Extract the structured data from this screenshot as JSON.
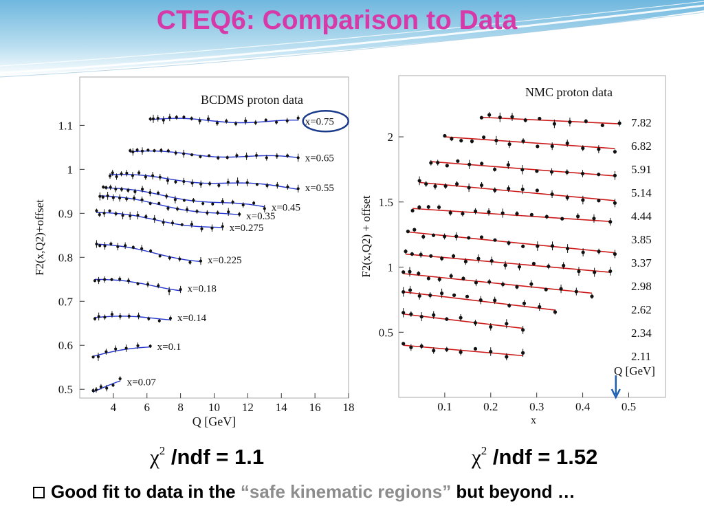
{
  "slide": {
    "title": "CTEQ6: Comparison to Data",
    "chi_left": {
      "symbol": "χ",
      "sup": "2",
      "text": " /ndf = 1.1"
    },
    "chi_right": {
      "symbol": "χ",
      "sup": "2",
      "text": " /ndf = 1.52"
    },
    "bullet": {
      "before": "Good fit to data in the ",
      "highlight": "“safe kinematic regions”",
      "after": " but beyond …"
    },
    "colors": {
      "title": "#d63aa8",
      "highlight": "#8c8c8c",
      "fit_left": "#2233cc",
      "fit_right": "#cc1a1a",
      "marker_circle": "#1a3a8a",
      "arrow": "#1a5fb4"
    }
  },
  "chart_data": [
    {
      "type": "scatter",
      "title": "BCDMS proton data",
      "xlabel": "Q [GeV]",
      "ylabel": "F2(x,Q2)+offset",
      "xlim": [
        2,
        18
      ],
      "ylim": [
        0.48,
        1.21
      ],
      "xticks": [
        4,
        6,
        8,
        10,
        12,
        14,
        16,
        18
      ],
      "yticks": [
        0.5,
        0.6,
        0.7,
        0.8,
        0.9,
        1.0,
        1.1
      ],
      "ytick_labels": [
        "0.5",
        "0.6",
        "0.7",
        "0.8",
        "0.9",
        "1",
        "1.1"
      ],
      "grid": false,
      "highlighted_series": "x=0.75",
      "series": [
        {
          "name": "x=0.75",
          "x_range": [
            6.2,
            15.0
          ],
          "fit": [
            1.113,
            1.108
          ]
        },
        {
          "name": "x=0.65",
          "x_range": [
            5.0,
            15.0
          ],
          "fit": [
            1.04,
            1.025
          ]
        },
        {
          "name": "x=0.55",
          "x_range": [
            3.8,
            15.0
          ],
          "fit": [
            0.988,
            0.957
          ]
        },
        {
          "name": "x=0.45",
          "x_range": [
            3.4,
            13.0
          ],
          "fit": [
            0.958,
            0.912
          ]
        },
        {
          "name": "x=0.35",
          "x_range": [
            3.2,
            11.5
          ],
          "fit": [
            0.94,
            0.893
          ]
        },
        {
          "name": "x=0.275",
          "x_range": [
            3.0,
            10.5
          ],
          "fit": [
            0.902,
            0.866
          ]
        },
        {
          "name": "x=0.225",
          "x_range": [
            3.0,
            9.2
          ],
          "fit": [
            0.83,
            0.793
          ]
        },
        {
          "name": "x=0.18",
          "x_range": [
            2.9,
            8.0
          ],
          "fit": [
            0.75,
            0.728
          ]
        },
        {
          "name": "x=0.14",
          "x_range": [
            2.9,
            7.4
          ],
          "fit": [
            0.663,
            0.661
          ]
        },
        {
          "name": "x=0.1",
          "x_range": [
            2.8,
            6.2
          ],
          "fit": [
            0.575,
            0.596
          ]
        },
        {
          "name": "x=0.07",
          "x_range": [
            2.8,
            4.4
          ],
          "fit": [
            0.494,
            0.515
          ]
        }
      ]
    },
    {
      "type": "scatter",
      "title": "NMC proton  data",
      "xlabel": "x",
      "ylabel": "F2(x,Q2) + offset",
      "xlim": [
        0.0,
        0.58
      ],
      "ylim": [
        0.0,
        2.47
      ],
      "xticks": [
        0.1,
        0.2,
        0.3,
        0.4,
        0.5
      ],
      "yticks": [
        0.5,
        1.0,
        1.5,
        2.0
      ],
      "ytick_labels": [
        "0.5",
        "1",
        "1.5",
        "2"
      ],
      "grid": false,
      "q_axis_label": "Q [GeV]",
      "arrow_at_x": 0.472,
      "series": [
        {
          "name": "7.82",
          "x_range": [
            0.18,
            0.48
          ],
          "fit": [
            2.15,
            2.1
          ]
        },
        {
          "name": "6.82",
          "x_range": [
            0.1,
            0.47
          ],
          "fit": [
            2.0,
            1.91
          ]
        },
        {
          "name": "5.91",
          "x_range": [
            0.07,
            0.47
          ],
          "fit": [
            1.81,
            1.7
          ]
        },
        {
          "name": "5.14",
          "x_range": [
            0.045,
            0.47
          ],
          "fit": [
            1.65,
            1.51
          ]
        },
        {
          "name": "4.44",
          "x_range": [
            0.03,
            0.46
          ],
          "fit": [
            1.45,
            1.35
          ]
        },
        {
          "name": "3.85",
          "x_range": [
            0.02,
            0.47
          ],
          "fit": [
            1.27,
            1.11
          ]
        },
        {
          "name": "3.37",
          "x_range": [
            0.015,
            0.46
          ],
          "fit": [
            1.1,
            0.96
          ]
        },
        {
          "name": "2.98",
          "x_range": [
            0.01,
            0.42
          ],
          "fit": [
            0.95,
            0.8
          ]
        },
        {
          "name": "2.62",
          "x_range": [
            0.01,
            0.34
          ],
          "fit": [
            0.81,
            0.67
          ]
        },
        {
          "name": "2.34",
          "x_range": [
            0.01,
            0.27
          ],
          "fit": [
            0.64,
            0.53
          ]
        },
        {
          "name": "2.11",
          "x_range": [
            0.01,
            0.27
          ],
          "fit": [
            0.4,
            0.32
          ]
        }
      ]
    }
  ]
}
